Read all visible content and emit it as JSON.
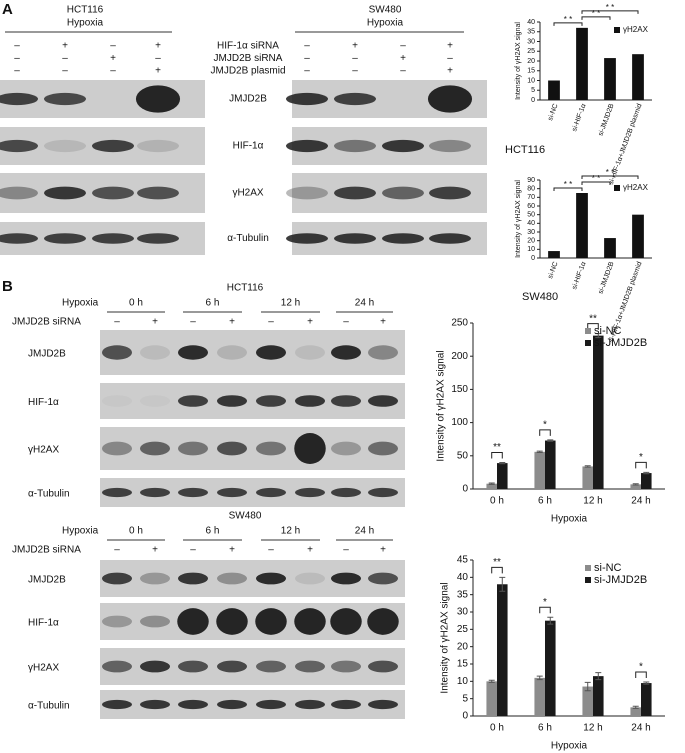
{
  "panel_a": {
    "label": "A",
    "blot_groups": [
      {
        "cell_line": "HCT116",
        "condition": "Hypoxia"
      },
      {
        "cell_line": "SW480",
        "condition": "Hypoxia"
      }
    ],
    "treatments": [
      {
        "name": "HIF-1α siRNA",
        "marks": [
          "–",
          "+",
          "–",
          "+"
        ]
      },
      {
        "name": "JMJD2B siRNA",
        "marks": [
          "–",
          "–",
          "+",
          "–"
        ]
      },
      {
        "name": "JMJD2B plasmid",
        "marks": [
          "–",
          "–",
          "–",
          "+"
        ]
      }
    ],
    "proteins": [
      "JMJD2B",
      "HIF-1α",
      "γH2AX",
      "α-Tubulin"
    ],
    "chart_data": [
      {
        "type": "bar",
        "y_label": "Intensity of γH2AX signal",
        "categories": [
          "si-NC",
          "si-HIF-1α",
          "si-JMJD2B",
          "si-HIF-1α+JMJD2B plasmid"
        ],
        "series": [
          {
            "name": "γH2AX",
            "color": "#111111",
            "values": [
              10,
              37,
              21.5,
              23.5
            ]
          }
        ],
        "ylim": [
          0,
          40
        ],
        "yticks": [
          0,
          5,
          10,
          15,
          20,
          25,
          30,
          35,
          40
        ],
        "brackets": [
          {
            "between": [
              "si-NC",
              "si-HIF-1α"
            ],
            "label": "* *"
          },
          {
            "between": [
              "si-HIF-1α",
              "si-JMJD2B"
            ],
            "label": "* *"
          },
          {
            "between": [
              "si-HIF-1α",
              "si-HIF-1α+JMJD2B plasmid"
            ],
            "label": "* *"
          }
        ]
      },
      {
        "type": "bar",
        "title": "HCT116",
        "y_label": "Intensity of γH2AX signal",
        "categories": [
          "si-NC",
          "si-HIF-1α",
          "si-JMJD2B",
          "si-HIF-1α+JMJD2B plasmid"
        ],
        "series": [
          {
            "name": "γH2AX",
            "color": "#111111",
            "values": [
              8,
              75,
              23,
              50
            ]
          }
        ],
        "ylim": [
          0,
          90
        ],
        "yticks": [
          0,
          10,
          20,
          30,
          40,
          50,
          60,
          70,
          80,
          90
        ],
        "brackets": [
          {
            "between": [
              "si-NC",
              "si-HIF-1α"
            ],
            "label": "* *"
          },
          {
            "between": [
              "si-HIF-1α",
              "si-JMJD2B"
            ],
            "label": "* *"
          },
          {
            "between": [
              "si-HIF-1α",
              "si-HIF-1α+JMJD2B plasmid"
            ],
            "label": "* *"
          }
        ]
      }
    ]
  },
  "panel_b": {
    "label": "B",
    "blot_groups": [
      {
        "cell_line": "HCT116",
        "condition": "Hypoxia",
        "timepoints": [
          "0 h",
          "6 h",
          "12 h",
          "24 h"
        ],
        "treatment": "JMJD2B siRNA",
        "marks": [
          "–",
          "+"
        ]
      },
      {
        "cell_line": "SW480",
        "condition": "Hypoxia",
        "timepoints": [
          "0 h",
          "6 h",
          "12 h",
          "24 h"
        ],
        "treatment": "JMJD2B siRNA",
        "marks": [
          "–",
          "+"
        ]
      }
    ],
    "proteins": [
      "JMJD2B",
      "HIF-1α",
      "γH2AX",
      "α-Tubulin"
    ],
    "chart_data": [
      {
        "type": "bar",
        "title": "SW480",
        "y_label": "Intensity of γH2AX signal",
        "x_label": "Hypoxia",
        "categories": [
          "0 h",
          "6 h",
          "12 h",
          "24 h"
        ],
        "series": [
          {
            "name": "si-NC",
            "color": "#8c8c8c",
            "values": [
              8,
              56,
              34,
              7
            ],
            "errors": [
              1,
              1,
              1,
              1
            ]
          },
          {
            "name": "si-JMJD2B",
            "color": "#1a1a1a",
            "values": [
              39,
              73,
              231,
              24
            ],
            "errors": [
              1,
              1,
              3,
              1
            ]
          }
        ],
        "ylim": [
          0,
          250
        ],
        "yticks": [
          0,
          50,
          100,
          150,
          200,
          250
        ],
        "significance": [
          "**",
          "*",
          "**",
          "*"
        ],
        "legend": "upper right"
      },
      {
        "type": "bar",
        "y_label": "Intensity of γH2AX signal",
        "x_label": "Hypoxia",
        "categories": [
          "0 h",
          "6 h",
          "12 h",
          "24 h"
        ],
        "series": [
          {
            "name": "si-NC",
            "color": "#8c8c8c",
            "values": [
              10,
              11,
              8.5,
              2.5
            ],
            "errors": [
              0.3,
              0.5,
              1.2,
              0.3
            ]
          },
          {
            "name": "si-JMJD2B",
            "color": "#1a1a1a",
            "values": [
              38,
              27.5,
              11.5,
              9.5
            ],
            "errors": [
              2,
              1,
              1,
              0.3
            ]
          }
        ],
        "ylim": [
          0,
          45
        ],
        "yticks": [
          0,
          5,
          10,
          15,
          20,
          25,
          30,
          35,
          40,
          45
        ],
        "significance": [
          "**",
          "*",
          null,
          "*"
        ],
        "legend": "upper right"
      }
    ]
  }
}
